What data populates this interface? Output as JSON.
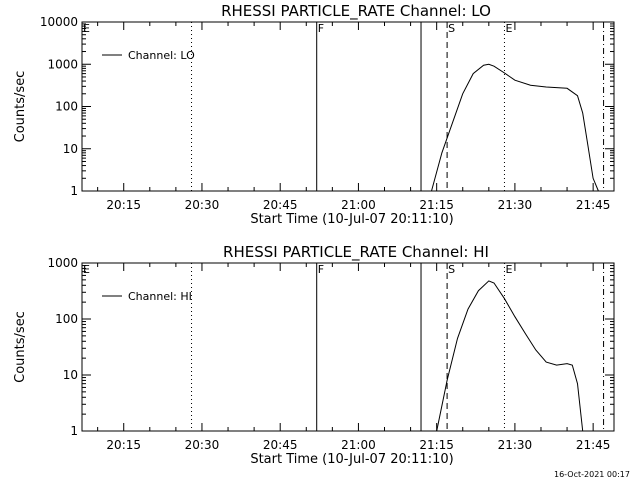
{
  "timestamp": "16-Oct-2021 00:17",
  "chart_data": [
    {
      "type": "line",
      "title": "RHESSI PARTICLE_RATE Channel: LO",
      "xlabel": "Start Time (10-Jul-07 20:11:10)",
      "ylabel": "Counts/sec",
      "y_scale": "log",
      "ylim": [
        1,
        10000
      ],
      "y_ticks": [
        1,
        10,
        100,
        1000,
        10000
      ],
      "y_tick_labels": [
        "1",
        "10",
        "100",
        "1000",
        "10000"
      ],
      "xlim": [
        "20:07",
        "21:49"
      ],
      "x_tick_labels": [
        "20:15",
        "20:30",
        "20:45",
        "21:00",
        "21:15",
        "21:30",
        "21:45"
      ],
      "grid": false,
      "legend": {
        "position": "top-left",
        "entries": [
          "Channel: LO"
        ]
      },
      "markers": [
        {
          "label": "E",
          "time": "20:07",
          "style": "dotted"
        },
        {
          "label": "",
          "time": "20:28",
          "style": "dotted"
        },
        {
          "label": "F",
          "time": "20:52",
          "style": "solid"
        },
        {
          "label": "",
          "time": "21:12",
          "style": "solid"
        },
        {
          "label": "S",
          "time": "21:17",
          "style": "dashed"
        },
        {
          "label": "E",
          "time": "21:28",
          "style": "dotted"
        },
        {
          "label": "",
          "time": "21:47",
          "style": "dash-dot"
        }
      ],
      "series": [
        {
          "name": "Channel: LO",
          "x": [
            "21:14",
            "21:16",
            "21:18",
            "21:20",
            "21:22",
            "21:24",
            "21:25",
            "21:26",
            "21:28",
            "21:30",
            "21:33",
            "21:36",
            "21:38",
            "21:40",
            "21:42",
            "21:43",
            "21:44",
            "21:45",
            "21:46"
          ],
          "y": [
            1,
            8,
            40,
            200,
            600,
            950,
            1000,
            900,
            620,
            420,
            320,
            290,
            280,
            270,
            180,
            70,
            12,
            2,
            1
          ]
        }
      ]
    },
    {
      "type": "line",
      "title": "RHESSI PARTICLE_RATE Channel: HI",
      "xlabel": "Start Time (10-Jul-07 20:11:10)",
      "ylabel": "Counts/sec",
      "y_scale": "log",
      "ylim": [
        1,
        1000
      ],
      "y_ticks": [
        1,
        10,
        100,
        1000
      ],
      "y_tick_labels": [
        "1",
        "10",
        "100",
        "1000"
      ],
      "xlim": [
        "20:07",
        "21:49"
      ],
      "x_tick_labels": [
        "20:15",
        "20:30",
        "20:45",
        "21:00",
        "21:15",
        "21:30",
        "21:45"
      ],
      "grid": false,
      "legend": {
        "position": "top-left",
        "entries": [
          "Channel: HI"
        ]
      },
      "markers": [
        {
          "label": "E",
          "time": "20:07",
          "style": "dotted"
        },
        {
          "label": "",
          "time": "20:28",
          "style": "dotted"
        },
        {
          "label": "F",
          "time": "20:52",
          "style": "solid"
        },
        {
          "label": "",
          "time": "21:12",
          "style": "solid"
        },
        {
          "label": "S",
          "time": "21:17",
          "style": "dashed"
        },
        {
          "label": "E",
          "time": "21:28",
          "style": "dotted"
        },
        {
          "label": "",
          "time": "21:47",
          "style": "dash-dot"
        }
      ],
      "series": [
        {
          "name": "Channel: HI",
          "x": [
            "21:15",
            "21:17",
            "21:19",
            "21:21",
            "21:23",
            "21:25",
            "21:26",
            "21:28",
            "21:30",
            "21:32",
            "21:34",
            "21:36",
            "21:38",
            "21:40",
            "21:41",
            "21:42",
            "21:43"
          ],
          "y": [
            1,
            8,
            45,
            150,
            320,
            480,
            440,
            230,
            110,
            55,
            28,
            17,
            15,
            16,
            15,
            7,
            1
          ]
        }
      ]
    }
  ]
}
